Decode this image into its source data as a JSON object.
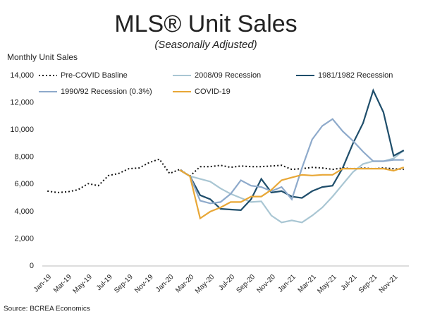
{
  "chart_data": {
    "type": "line",
    "title": "MLS® Unit Sales",
    "subtitle": "(Seasonally Adjusted)",
    "y_label": "Monthly Unit Sales",
    "source": "Source: BCREA Economics",
    "categories": [
      "Jan-19",
      null,
      "Mar-19",
      null,
      "May-19",
      null,
      "Jul-19",
      null,
      "Sep-19",
      null,
      "Nov-19",
      null,
      "Jan-20",
      null,
      "Mar-20",
      null,
      "May-20",
      null,
      "Jul-20",
      null,
      "Sep-20",
      null,
      "Nov-20",
      null,
      "Jan-21",
      null,
      "Mar-21",
      null,
      "May-21",
      null,
      "Jul-21",
      null,
      "Sep-21",
      null,
      "Nov-21",
      null
    ],
    "ylim": [
      0,
      14000
    ],
    "yticks": [
      0,
      {
        "value": 2000,
        "label": "2,000"
      },
      {
        "value": 4000,
        "label": "4,000"
      },
      {
        "value": 6000,
        "label": "6,000"
      },
      {
        "value": 8000,
        "label": "8,000"
      },
      {
        "value": 10000,
        "label": "10,000"
      },
      {
        "value": 12000,
        "label": "12,000"
      },
      {
        "value": 14000,
        "label": "14,000"
      }
    ],
    "series": [
      {
        "name": "Pre-COVID Basline",
        "color": "#111111",
        "line_style": "dotted",
        "values": [
          5500,
          5400,
          5450,
          5600,
          6050,
          5900,
          6650,
          6800,
          7150,
          7200,
          7600,
          7850,
          6800,
          7100,
          6600,
          7300,
          7300,
          7400,
          7250,
          7350,
          7300,
          7300,
          7350,
          7400,
          7100,
          7150,
          7250,
          7200,
          7100,
          7200,
          7150,
          7200,
          7150,
          7200,
          7150,
          7100
        ]
      },
      {
        "name": "2008/09 Recession",
        "color": "#a9c6d3",
        "values": [
          null,
          null,
          null,
          null,
          null,
          null,
          null,
          null,
          null,
          null,
          null,
          null,
          null,
          7050,
          6600,
          6400,
          6200,
          5700,
          5300,
          5000,
          4700,
          4750,
          3700,
          3200,
          3350,
          3200,
          3700,
          4300,
          5100,
          6000,
          6900,
          7500,
          7700,
          7700,
          7900,
          8500
        ]
      },
      {
        "name": "1981/1982 Recession",
        "color": "#1f4e6b",
        "values": [
          null,
          null,
          null,
          null,
          null,
          null,
          null,
          null,
          null,
          null,
          null,
          null,
          null,
          7050,
          6600,
          5200,
          4900,
          4200,
          4150,
          4100,
          4900,
          6400,
          5400,
          5500,
          5100,
          5000,
          5500,
          5800,
          5900,
          7200,
          9000,
          10500,
          12900,
          11300,
          8100,
          8500
        ]
      },
      {
        "name": "1990/92 Recession (0.3%)",
        "color": "#8eaacb",
        "values": [
          null,
          null,
          null,
          null,
          null,
          null,
          null,
          null,
          null,
          null,
          null,
          null,
          null,
          7050,
          6600,
          4800,
          4600,
          4700,
          5300,
          6300,
          5900,
          5800,
          5500,
          5800,
          4900,
          7200,
          9300,
          10300,
          10800,
          9900,
          9200,
          8400,
          7700,
          7700,
          7800,
          7800
        ]
      },
      {
        "name": "COVID-19",
        "color": "#e8a736",
        "values": [
          null,
          null,
          null,
          null,
          null,
          null,
          null,
          null,
          null,
          null,
          null,
          null,
          null,
          7050,
          6600,
          3500,
          4000,
          4300,
          4700,
          4700,
          5100,
          5100,
          5600,
          6300,
          6500,
          6700,
          6650,
          6700,
          6700,
          7150,
          7150,
          7150,
          7150,
          7150,
          7000,
          7250
        ]
      }
    ]
  }
}
